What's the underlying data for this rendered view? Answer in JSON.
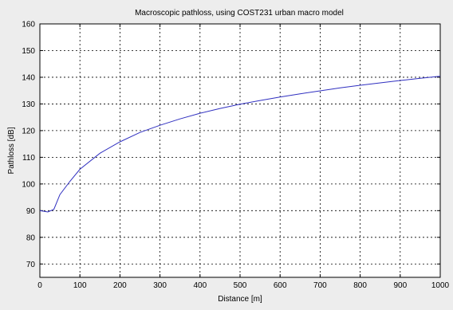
{
  "chart_data": {
    "type": "line",
    "title": "Macroscopic pathloss, using COST231 urban macro model",
    "xlabel": "Distance [m]",
    "ylabel": "Pathloss [dB]",
    "xlim": [
      0,
      1000
    ],
    "ylim": [
      65,
      160
    ],
    "xticks": [
      0,
      100,
      200,
      300,
      400,
      500,
      600,
      700,
      800,
      900,
      1000
    ],
    "yticks": [
      70,
      80,
      90,
      100,
      110,
      120,
      130,
      140,
      150,
      160
    ],
    "grid": true,
    "colors": {
      "line": "#3030c0",
      "background": "#ededed",
      "plot_area": "#ffffff"
    },
    "series": [
      {
        "x": [
          0,
          20,
          35,
          50,
          75,
          100,
          150,
          200,
          250,
          300,
          350,
          400,
          450,
          500,
          550,
          600,
          650,
          700,
          750,
          800,
          850,
          900,
          950,
          1000
        ],
        "y": [
          90,
          89.5,
          90.5,
          96,
          101,
          105.5,
          111.5,
          115.8,
          119.3,
          122,
          124.4,
          126.5,
          128.3,
          129.9,
          131.3,
          132.6,
          133.8,
          134.9,
          136,
          137,
          137.9,
          138.8,
          139.6,
          140.4
        ]
      }
    ]
  }
}
